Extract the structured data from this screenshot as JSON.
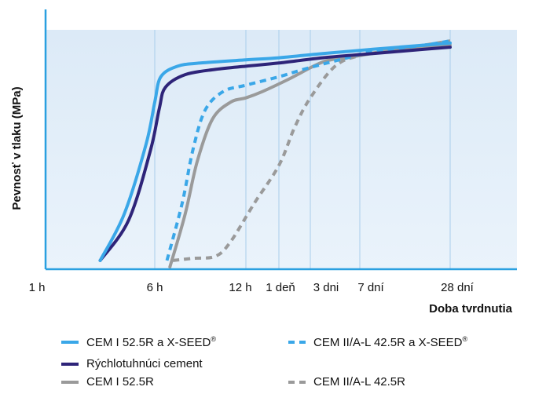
{
  "chart_data": {
    "type": "line",
    "ylabel": "Pevnosť v tlaku (MPa)",
    "xlabel": "Doba tvrdnutia",
    "x_ticks": [
      "1 h",
      "6 h",
      "12 h",
      "1 deň",
      "3 dni",
      "7 dní",
      "28 dní"
    ],
    "x_scale": "categorical timeline (hours to days)",
    "y_ticks": [],
    "grid": "vertical lines at x ticks",
    "legend_position": "bottom",
    "colors": {
      "light_blue": "#3aa7e8",
      "dark_blue": "#2e2479",
      "gray": "#9a9a9a",
      "plot_bg_top": "#dceaf7",
      "plot_bg_bottom": "#eaf3fb",
      "grid": "#a9cdeb"
    },
    "series": [
      {
        "name": "CEM I 52.5R a X-SEED",
        "name_sup": "®",
        "style": "solid",
        "color": "#3aa7e8",
        "points": [
          [
            3.5,
            3
          ],
          [
            4.6,
            25
          ],
          [
            5.6,
            58
          ],
          [
            6.0,
            78
          ],
          [
            6.4,
            90
          ],
          [
            7.5,
            95
          ],
          [
            9,
            96.5
          ],
          [
            12,
            98
          ],
          [
            14,
            99
          ],
          [
            18,
            101
          ],
          [
            22,
            103
          ],
          [
            26,
            105
          ],
          [
            28,
            106
          ]
        ]
      },
      {
        "name": "Rýchlotuhnúci cement",
        "style": "solid",
        "color": "#2e2479",
        "points": [
          [
            3.5,
            3
          ],
          [
            4.8,
            22
          ],
          [
            5.8,
            55
          ],
          [
            6.3,
            75
          ],
          [
            6.7,
            85
          ],
          [
            8,
            91
          ],
          [
            10,
            93.5
          ],
          [
            12,
            95
          ],
          [
            14,
            96.5
          ],
          [
            18,
            99
          ],
          [
            22,
            101
          ],
          [
            26,
            103
          ],
          [
            28,
            104
          ]
        ]
      },
      {
        "name": "CEM I 52.5R",
        "style": "solid",
        "color": "#9a9a9a",
        "points": [
          [
            7,
            0
          ],
          [
            8,
            25
          ],
          [
            8.8,
            50
          ],
          [
            9.8,
            70
          ],
          [
            11,
            78
          ],
          [
            12,
            80
          ],
          [
            13,
            83
          ],
          [
            15,
            89
          ],
          [
            18,
            97
          ],
          [
            20,
            99
          ],
          [
            22,
            101
          ],
          [
            26,
            104
          ],
          [
            28,
            105
          ]
        ]
      },
      {
        "name": "CEM II/A-L 42.5R a X-SEED",
        "name_sup": "®",
        "style": "dashed",
        "color": "#3aa7e8",
        "points": [
          [
            6.8,
            3
          ],
          [
            7.8,
            30
          ],
          [
            8.5,
            55
          ],
          [
            9.3,
            74
          ],
          [
            10.5,
            83
          ],
          [
            12,
            86
          ],
          [
            14,
            90
          ],
          [
            16,
            93
          ],
          [
            18,
            96
          ],
          [
            20,
            99
          ],
          [
            22,
            102
          ],
          [
            26,
            105
          ],
          [
            28,
            107
          ]
        ]
      },
      {
        "name": "CEM II/A-L 42.5R",
        "style": "dashed",
        "color": "#9a9a9a",
        "points": [
          [
            7.2,
            3
          ],
          [
            8.5,
            4
          ],
          [
            10,
            5
          ],
          [
            11,
            12
          ],
          [
            12.5,
            30
          ],
          [
            14,
            48
          ],
          [
            15.5,
            66
          ],
          [
            17,
            80
          ],
          [
            19,
            95
          ],
          [
            21,
            100
          ],
          [
            24,
            103
          ],
          [
            26,
            105
          ],
          [
            28,
            107
          ]
        ]
      }
    ]
  },
  "legend": {
    "items": [
      {
        "label": "CEM I 52.5R a X-SEED",
        "sup": "®",
        "color": "#3aa7e8",
        "dashed": false
      },
      {
        "label": "CEM II/A-L 42.5R a X-SEED",
        "sup": "®",
        "color": "#3aa7e8",
        "dashed": true
      },
      {
        "label": "Rýchlotuhnúci cement",
        "sup": "",
        "color": "#2e2479",
        "dashed": false
      },
      {
        "label": "CEM I 52.5R",
        "sup": "",
        "color": "#9a9a9a",
        "dashed": false
      },
      {
        "label": "CEM II/A-L 42.5R",
        "sup": "",
        "color": "#9a9a9a",
        "dashed": true
      }
    ]
  }
}
